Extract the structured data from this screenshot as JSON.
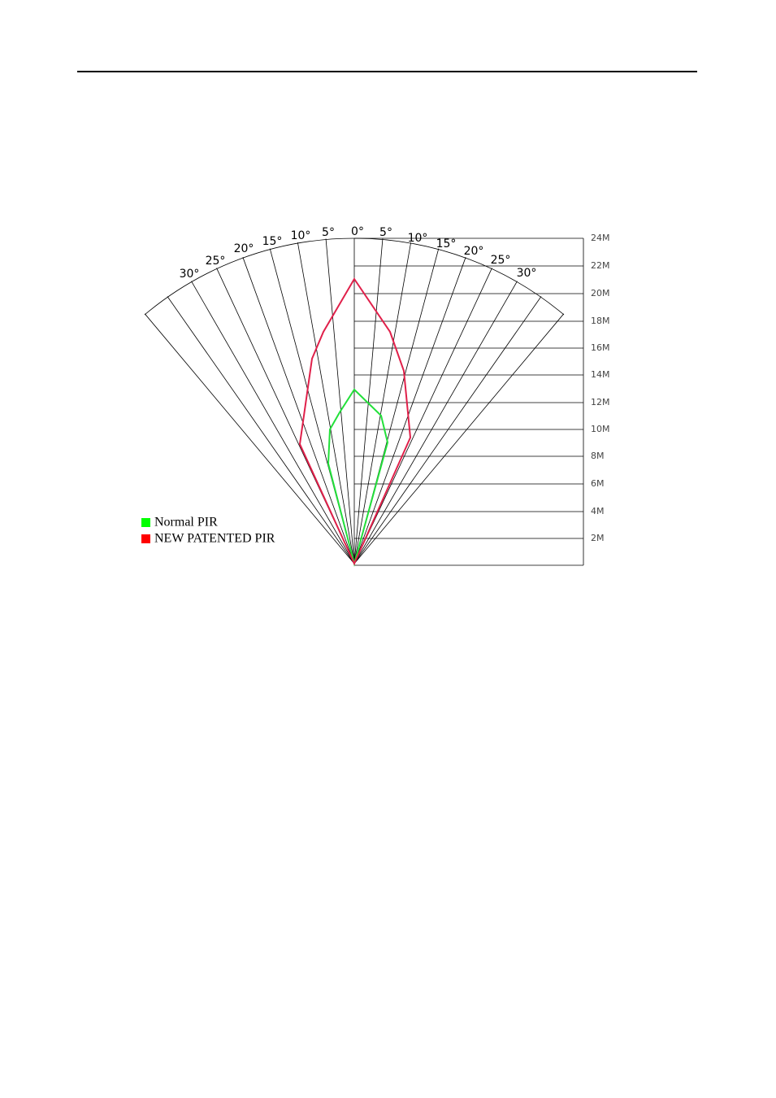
{
  "diagram": {
    "angle_labels_left": [
      "30°",
      "25°",
      "20°",
      "15°",
      "10°",
      "5°"
    ],
    "angle_label_center": "0°",
    "angle_labels_right": [
      "5°",
      "10°",
      "15°",
      "20°",
      "25°",
      "30°"
    ],
    "distance_labels": [
      "24M",
      "22M",
      "20M",
      "18M",
      "16M",
      "14M",
      "12M",
      "10M",
      "8M",
      "6M",
      "4M",
      "2M"
    ],
    "legend": [
      {
        "label": "Normal PIR",
        "color": "#00ff00"
      },
      {
        "label": "NEW PATENTED PIR",
        "color": "#ff0000"
      }
    ]
  }
}
